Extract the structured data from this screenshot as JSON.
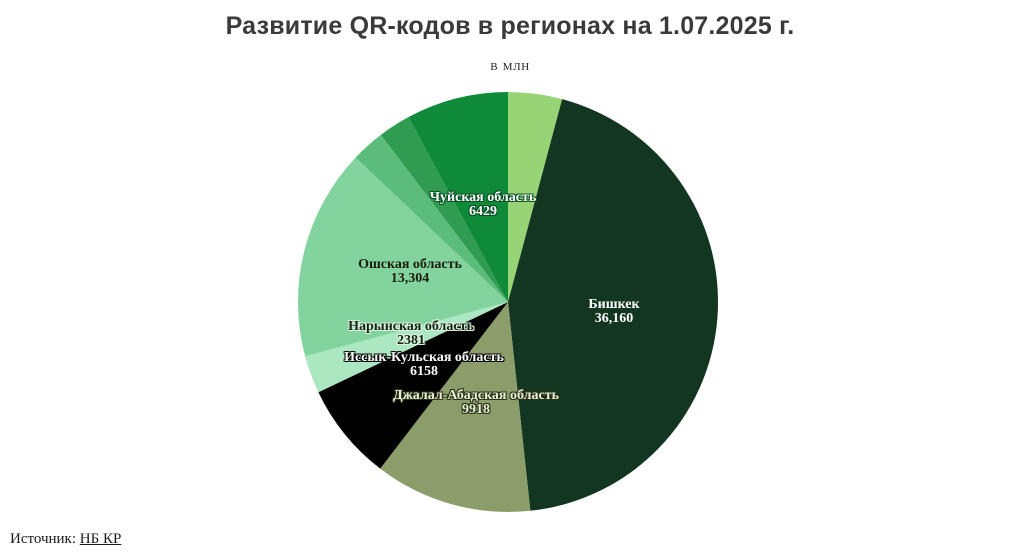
{
  "title": "Развитие QR-кодов в регионах на 1.07.2025 г.",
  "subtitle": "в млн",
  "source": {
    "prefix": "Источник: ",
    "link_text": "НБ КР"
  },
  "colors": {
    "background": "#ffffff",
    "title_text": "#3a3a3a",
    "bishkek_slice": "#133621",
    "chuy_slice": "#0e8a38",
    "osh_slice": "#82d39d",
    "naryn_slice": "#abe8c1",
    "issyk_slice": "#010101",
    "jalal_slice": "#8b9e69",
    "top_light_slice": "#96d476"
  },
  "chart_data": {
    "type": "pie",
    "title": "Развитие QR-кодов в регионах на 1.07.2025 г.",
    "unit_label": "в млн",
    "direction": "clockwise",
    "start_angle_deg": 0,
    "legend": "none",
    "slices": [
      {
        "id": "unlabeled-top",
        "label": "",
        "value": 3400,
        "estimated": true,
        "color": "#96d476"
      },
      {
        "id": "bishkek",
        "label": "Бишкек",
        "value": 36160,
        "display_value": "36,160",
        "color": "#133621"
      },
      {
        "id": "jalal-abad",
        "label": "Джалал-Абадская область",
        "value": 9918,
        "display_value": "9918",
        "color": "#8b9e69"
      },
      {
        "id": "issyk-kul",
        "label": "Иссык-Кульская область",
        "value": 6158,
        "display_value": "6158",
        "color": "#010101"
      },
      {
        "id": "naryn",
        "label": "Нарынская область",
        "value": 2381,
        "display_value": "2381",
        "color": "#abe8c1"
      },
      {
        "id": "osh-region",
        "label": "Ошская область",
        "value": 13304,
        "display_value": "13,304",
        "color": "#82d39d"
      },
      {
        "id": "unlabeled-mid",
        "label": "",
        "value": 2100,
        "estimated": true,
        "color": "#5cbc7c"
      },
      {
        "id": "unlabeled-small",
        "label": "",
        "value": 2050,
        "estimated": true,
        "color": "#2f9c51"
      },
      {
        "id": "chuy",
        "label": "Чуйская область",
        "value": 6429,
        "display_value": "6429",
        "color": "#0e8a38"
      }
    ]
  }
}
